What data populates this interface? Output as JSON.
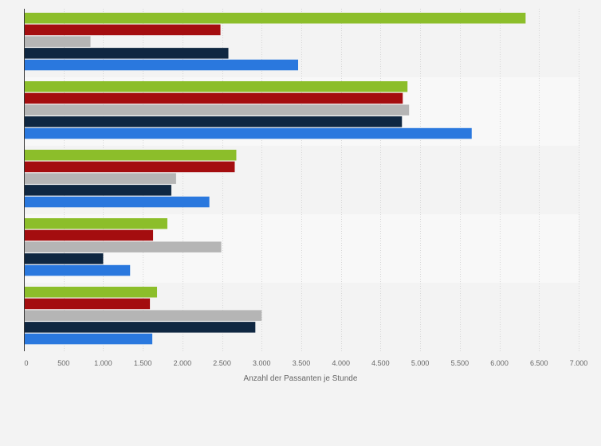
{
  "chart_data": {
    "type": "bar",
    "orientation": "horizontal",
    "title": "",
    "xlabel": "Anzahl der Passanten je Stunde",
    "ylabel": "",
    "xlim": [
      0,
      7000
    ],
    "x_ticks": [
      0,
      500,
      1000,
      1500,
      2000,
      2500,
      3000,
      3500,
      4000,
      4500,
      5000,
      5500,
      6000,
      6500,
      7000
    ],
    "x_tick_labels": [
      "0",
      "500",
      "1.000",
      "1.500",
      "2.000",
      "2.500",
      "3.000",
      "3.500",
      "4.000",
      "4.500",
      "5.000",
      "5.500",
      "6.000",
      "6.500",
      "7.000"
    ],
    "categories": [
      "",
      "",
      "",
      "",
      ""
    ],
    "grid": true,
    "legend": "none",
    "series": [
      {
        "color": "#8cbe2a",
        "values": [
          6330,
          4840,
          2680,
          1810,
          1680
        ]
      },
      {
        "color": "#a40d0f",
        "values": [
          2480,
          4780,
          2660,
          1630,
          1590
        ]
      },
      {
        "color": "#b5b5b5",
        "values": [
          840,
          4860,
          1920,
          2490,
          3000
        ]
      },
      {
        "color": "#0f2741",
        "values": [
          2580,
          4770,
          1860,
          1000,
          2920
        ]
      },
      {
        "color": "#2a78de",
        "values": [
          3460,
          5650,
          2340,
          1340,
          1620
        ]
      }
    ]
  }
}
